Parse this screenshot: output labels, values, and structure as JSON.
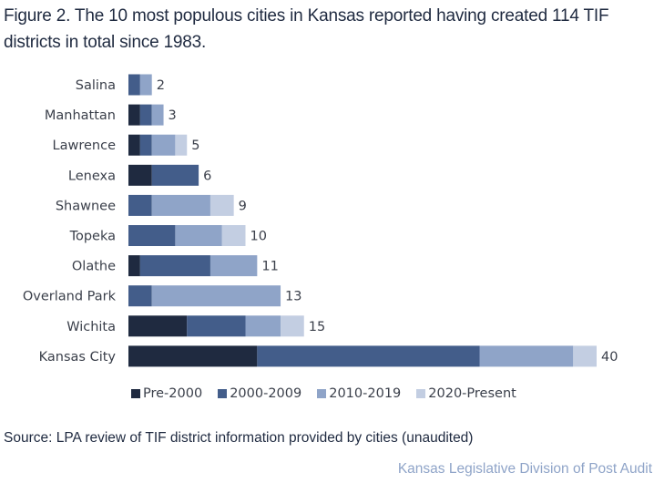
{
  "chart_data": {
    "type": "bar",
    "orientation": "horizontal",
    "stacked": true,
    "title": "Figure 2. The 10 most populous cities in Kansas reported having created 114 TIF districts in total since 1983.",
    "xlabel": "",
    "ylabel": "",
    "categories": [
      "Salina",
      "Manhattan",
      "Lawrence",
      "Lenexa",
      "Shawnee",
      "Topeka",
      "Olathe",
      "Overland Park",
      "Wichita",
      "Kansas City"
    ],
    "series": [
      {
        "name": "Pre-2000",
        "color": "#1f2a40",
        "values": [
          0,
          1,
          1,
          2,
          0,
          0,
          1,
          0,
          5,
          11
        ]
      },
      {
        "name": "2000-2009",
        "color": "#435d8a",
        "values": [
          1,
          1,
          1,
          4,
          2,
          4,
          6,
          2,
          5,
          19
        ]
      },
      {
        "name": "2010-2019",
        "color": "#8fa4c8",
        "values": [
          1,
          1,
          2,
          0,
          5,
          4,
          4,
          11,
          3,
          8
        ]
      },
      {
        "name": "2020-Present",
        "color": "#c3cee2",
        "values": [
          0,
          0,
          1,
          0,
          2,
          2,
          0,
          0,
          2,
          2
        ]
      }
    ],
    "totals": [
      2,
      3,
      5,
      6,
      9,
      10,
      11,
      13,
      15,
      40
    ],
    "xlim": [
      0,
      40
    ],
    "grid": false,
    "axes_visible": false,
    "legend_position": "bottom"
  },
  "source": "Source: LPA review of TIF district information provided by cities (unaudited)",
  "credit": "Kansas Legislative Division of Post Audit"
}
